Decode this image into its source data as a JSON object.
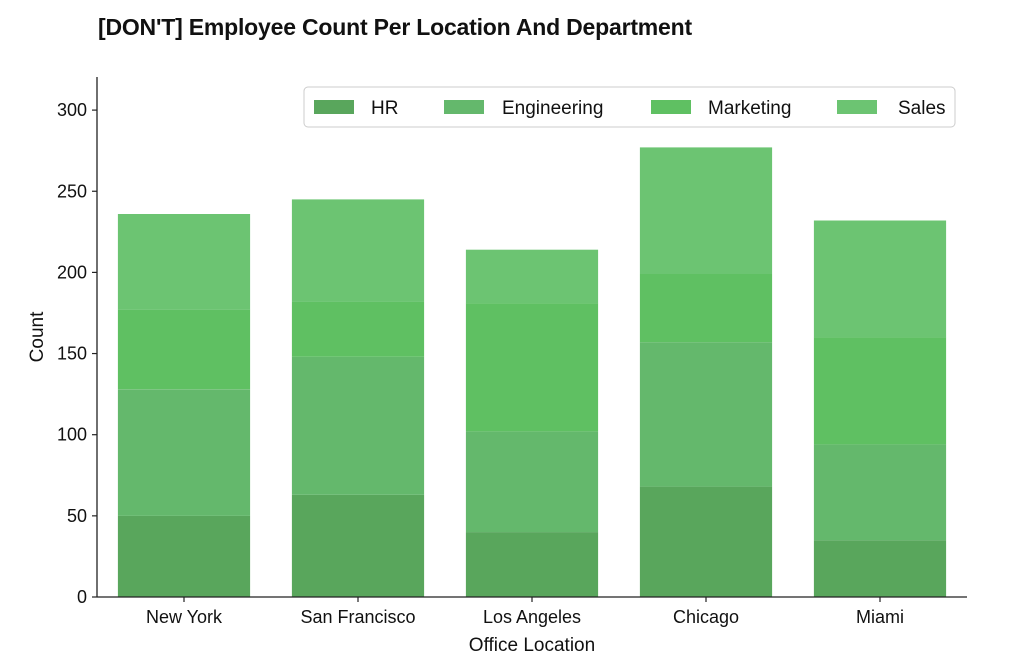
{
  "chart_data": {
    "type": "bar",
    "stacked": true,
    "title": "[DON'T] Employee Count Per Location And Department",
    "xlabel": "Office Location",
    "ylabel": "Count",
    "categories": [
      "New York",
      "San Francisco",
      "Los Angeles",
      "Chicago",
      "Miami"
    ],
    "series": [
      {
        "name": "HR",
        "color": "#59a65c",
        "values": [
          50,
          63,
          40,
          68,
          35
        ]
      },
      {
        "name": "Engineering",
        "color": "#64b86c",
        "values": [
          78,
          85,
          62,
          89,
          59
        ]
      },
      {
        "name": "Marketing",
        "color": "#5fc062",
        "values": [
          49,
          34,
          79,
          42,
          66
        ]
      },
      {
        "name": "Sales",
        "color": "#6cc472",
        "values": [
          59,
          63,
          33,
          78,
          72
        ]
      }
    ],
    "ylim": [
      0,
      320
    ],
    "yticks": [
      0,
      50,
      100,
      150,
      200,
      250,
      300
    ],
    "grid": false,
    "legend": "top-right"
  }
}
